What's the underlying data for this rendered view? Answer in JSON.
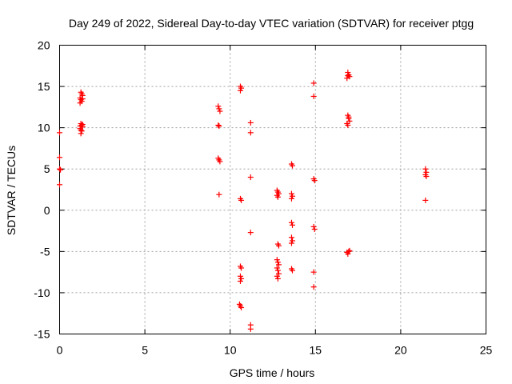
{
  "chart_data": {
    "type": "scatter",
    "title": "Day 249 of 2022, Sidereal Day-to-day VTEC variation (SDTVAR) for receiver ptgg",
    "xlabel": "GPS time / hours",
    "ylabel": "SDTVAR / TECUs",
    "xlim": [
      0,
      25
    ],
    "ylim": [
      -15,
      20
    ],
    "xticks": [
      0,
      5,
      10,
      15,
      20,
      25
    ],
    "yticks": [
      -15,
      -10,
      -5,
      0,
      5,
      10,
      15,
      20
    ],
    "xtick_labels": [
      "0",
      "5",
      "10",
      "15",
      "20",
      "25"
    ],
    "ytick_labels": [
      "-15",
      "-10",
      "-5",
      "0",
      "5",
      "10",
      "15",
      "20"
    ],
    "grid": true,
    "marker": "plus",
    "color": "#ff0000",
    "series": [
      {
        "name": "SDTVAR",
        "points": [
          [
            0.0,
            9.4
          ],
          [
            0.0,
            6.4
          ],
          [
            0.0,
            5.0
          ],
          [
            0.05,
            4.9
          ],
          [
            0.0,
            3.1
          ],
          [
            1.25,
            14.3
          ],
          [
            1.3,
            14.1
          ],
          [
            1.35,
            13.9
          ],
          [
            1.2,
            13.6
          ],
          [
            1.25,
            13.4
          ],
          [
            1.3,
            13.2
          ],
          [
            1.35,
            13.5
          ],
          [
            1.2,
            13.0
          ],
          [
            1.25,
            10.5
          ],
          [
            1.3,
            10.3
          ],
          [
            1.35,
            10.1
          ],
          [
            1.2,
            9.9
          ],
          [
            1.25,
            9.7
          ],
          [
            1.3,
            9.6
          ],
          [
            1.35,
            10.4
          ],
          [
            1.2,
            10.2
          ],
          [
            1.25,
            9.3
          ],
          [
            9.3,
            12.6
          ],
          [
            9.35,
            12.3
          ],
          [
            9.4,
            12.0
          ],
          [
            9.3,
            10.3
          ],
          [
            9.35,
            10.2
          ],
          [
            9.3,
            6.3
          ],
          [
            9.35,
            6.1
          ],
          [
            9.4,
            5.9
          ],
          [
            9.35,
            1.9
          ],
          [
            10.6,
            15.0
          ],
          [
            10.65,
            14.8
          ],
          [
            10.6,
            14.5
          ],
          [
            10.6,
            1.4
          ],
          [
            10.65,
            1.2
          ],
          [
            10.6,
            -6.8
          ],
          [
            10.65,
            -7.0
          ],
          [
            10.6,
            -8.0
          ],
          [
            10.65,
            -8.3
          ],
          [
            10.6,
            -8.6
          ],
          [
            10.55,
            -11.4
          ],
          [
            10.6,
            -11.6
          ],
          [
            10.65,
            -11.8
          ],
          [
            11.2,
            10.6
          ],
          [
            11.2,
            9.4
          ],
          [
            11.2,
            4.0
          ],
          [
            11.2,
            -2.7
          ],
          [
            11.2,
            -13.9
          ],
          [
            11.2,
            -14.4
          ],
          [
            12.75,
            2.4
          ],
          [
            12.8,
            2.2
          ],
          [
            12.85,
            2.0
          ],
          [
            12.75,
            1.8
          ],
          [
            12.8,
            1.6
          ],
          [
            12.8,
            -4.1
          ],
          [
            12.85,
            -4.3
          ],
          [
            12.75,
            -6.0
          ],
          [
            12.8,
            -6.3
          ],
          [
            12.85,
            -6.6
          ],
          [
            12.75,
            -7.0
          ],
          [
            12.8,
            -7.3
          ],
          [
            12.85,
            -7.7
          ],
          [
            12.75,
            -8.0
          ],
          [
            12.8,
            -8.3
          ],
          [
            13.6,
            5.6
          ],
          [
            13.65,
            5.4
          ],
          [
            13.6,
            2.0
          ],
          [
            13.65,
            1.7
          ],
          [
            13.6,
            1.4
          ],
          [
            13.6,
            -1.5
          ],
          [
            13.65,
            -1.8
          ],
          [
            13.6,
            -3.3
          ],
          [
            13.65,
            -3.7
          ],
          [
            13.6,
            -4.0
          ],
          [
            13.6,
            -7.1
          ],
          [
            13.65,
            -7.3
          ],
          [
            14.9,
            15.4
          ],
          [
            14.9,
            13.8
          ],
          [
            14.9,
            3.8
          ],
          [
            14.95,
            3.6
          ],
          [
            14.9,
            -2.0
          ],
          [
            14.95,
            -2.3
          ],
          [
            14.9,
            -7.5
          ],
          [
            14.9,
            -9.3
          ],
          [
            16.9,
            16.7
          ],
          [
            16.95,
            16.4
          ],
          [
            17.0,
            16.2
          ],
          [
            16.85,
            16.0
          ],
          [
            16.9,
            16.3
          ],
          [
            16.9,
            11.5
          ],
          [
            16.95,
            11.1
          ],
          [
            17.0,
            10.8
          ],
          [
            16.85,
            10.5
          ],
          [
            16.9,
            10.3
          ],
          [
            16.95,
            11.3
          ],
          [
            16.85,
            -5.1
          ],
          [
            16.9,
            -5.3
          ],
          [
            16.95,
            -5.0
          ],
          [
            17.0,
            -4.9
          ],
          [
            21.45,
            5.0
          ],
          [
            21.5,
            4.6
          ],
          [
            21.45,
            4.3
          ],
          [
            21.5,
            4.1
          ],
          [
            21.45,
            1.2
          ]
        ]
      }
    ]
  }
}
